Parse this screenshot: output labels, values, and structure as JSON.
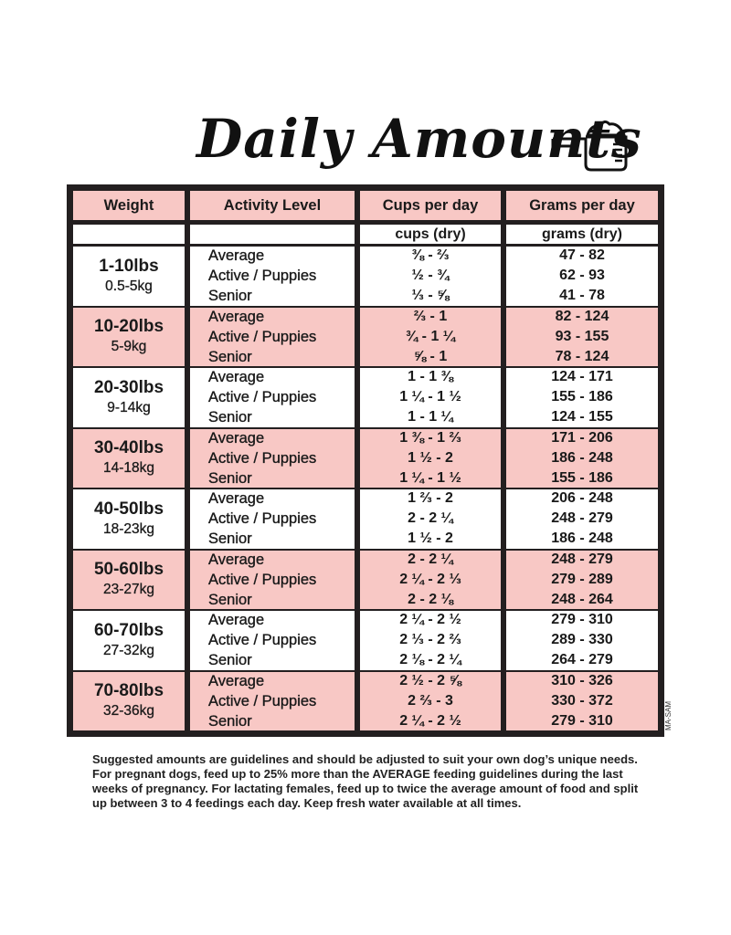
{
  "title": "Daily Amounts",
  "icon": "measuring-cup-icon",
  "colors": {
    "highlight": "#f8c8c5",
    "border": "#231f20"
  },
  "headers": [
    "Weight",
    "Activity Level",
    "Cups per day",
    "Grams per day"
  ],
  "subheaders": {
    "cups": "cups (dry)",
    "grams": "grams (dry)"
  },
  "groups": [
    {
      "lbs": "1-10lbs",
      "kg": "0.5-5kg",
      "activities": [
        "Average",
        "Active / Puppies",
        "Senior"
      ],
      "cups": [
        "⅜ - ⅔",
        "½ - ¾",
        "⅓ - ⅝"
      ],
      "grams": [
        "47 - 82",
        "62 - 93",
        "41 - 78"
      ]
    },
    {
      "lbs": "10-20lbs",
      "kg": "5-9kg",
      "activities": [
        "Average",
        "Active / Puppies",
        "Senior"
      ],
      "cups": [
        "⅔ - 1",
        "¾ - 1 ¼",
        "⅝ - 1"
      ],
      "grams": [
        "82 - 124",
        "93 - 155",
        "78 - 124"
      ]
    },
    {
      "lbs": "20-30lbs",
      "kg": "9-14kg",
      "activities": [
        "Average",
        "Active / Puppies",
        "Senior"
      ],
      "cups": [
        "1 - 1 ⅜",
        "1 ¼ - 1 ½",
        "1 - 1 ¼"
      ],
      "grams": [
        "124 - 171",
        "155 - 186",
        "124 - 155"
      ]
    },
    {
      "lbs": "30-40lbs",
      "kg": "14-18kg",
      "activities": [
        "Average",
        "Active / Puppies",
        "Senior"
      ],
      "cups": [
        "1 ⅜ - 1 ⅔",
        "1 ½ - 2",
        "1 ¼ - 1 ½"
      ],
      "grams": [
        "171 - 206",
        "186 - 248",
        "155 - 186"
      ]
    },
    {
      "lbs": "40-50lbs",
      "kg": "18-23kg",
      "activities": [
        "Average",
        "Active / Puppies",
        "Senior"
      ],
      "cups": [
        "1 ⅔ - 2",
        "2 - 2 ¼",
        "1 ½ - 2"
      ],
      "grams": [
        "206 - 248",
        "248 - 279",
        "186 - 248"
      ]
    },
    {
      "lbs": "50-60lbs",
      "kg": "23-27kg",
      "activities": [
        "Average",
        "Active / Puppies",
        "Senior"
      ],
      "cups": [
        "2 - 2 ¼",
        "2 ¼ - 2 ⅓",
        "2 - 2 ⅛"
      ],
      "grams": [
        "248 - 279",
        "279 - 289",
        "248 - 264"
      ]
    },
    {
      "lbs": "60-70lbs",
      "kg": "27-32kg",
      "activities": [
        "Average",
        "Active / Puppies",
        "Senior"
      ],
      "cups": [
        "2 ¼ - 2 ½",
        "2 ⅓ - 2 ⅔",
        "2 ⅛ - 2 ¼"
      ],
      "grams": [
        "279 - 310",
        "289 - 330",
        "264 - 279"
      ]
    },
    {
      "lbs": "70-80lbs",
      "kg": "32-36kg",
      "activities": [
        "Average",
        "Active / Puppies",
        "Senior"
      ],
      "cups": [
        "2 ½ - 2 ⅝",
        "2 ⅔ - 3",
        "2 ¼ - 2 ½"
      ],
      "grams": [
        "310 - 326",
        "330 - 372",
        "279 - 310"
      ]
    }
  ],
  "note": "Suggested amounts are guidelines and should be adjusted to suit your own dog’s unique needs. For pregnant dogs, feed up to 25% more than the AVERAGE feeding guidelines during the last weeks of pregnancy. For lactating females, feed up to twice the average amount of food and split up between 3 to 4 feedings each day. Keep fresh water available at all times.",
  "credit": "MA-SAM"
}
